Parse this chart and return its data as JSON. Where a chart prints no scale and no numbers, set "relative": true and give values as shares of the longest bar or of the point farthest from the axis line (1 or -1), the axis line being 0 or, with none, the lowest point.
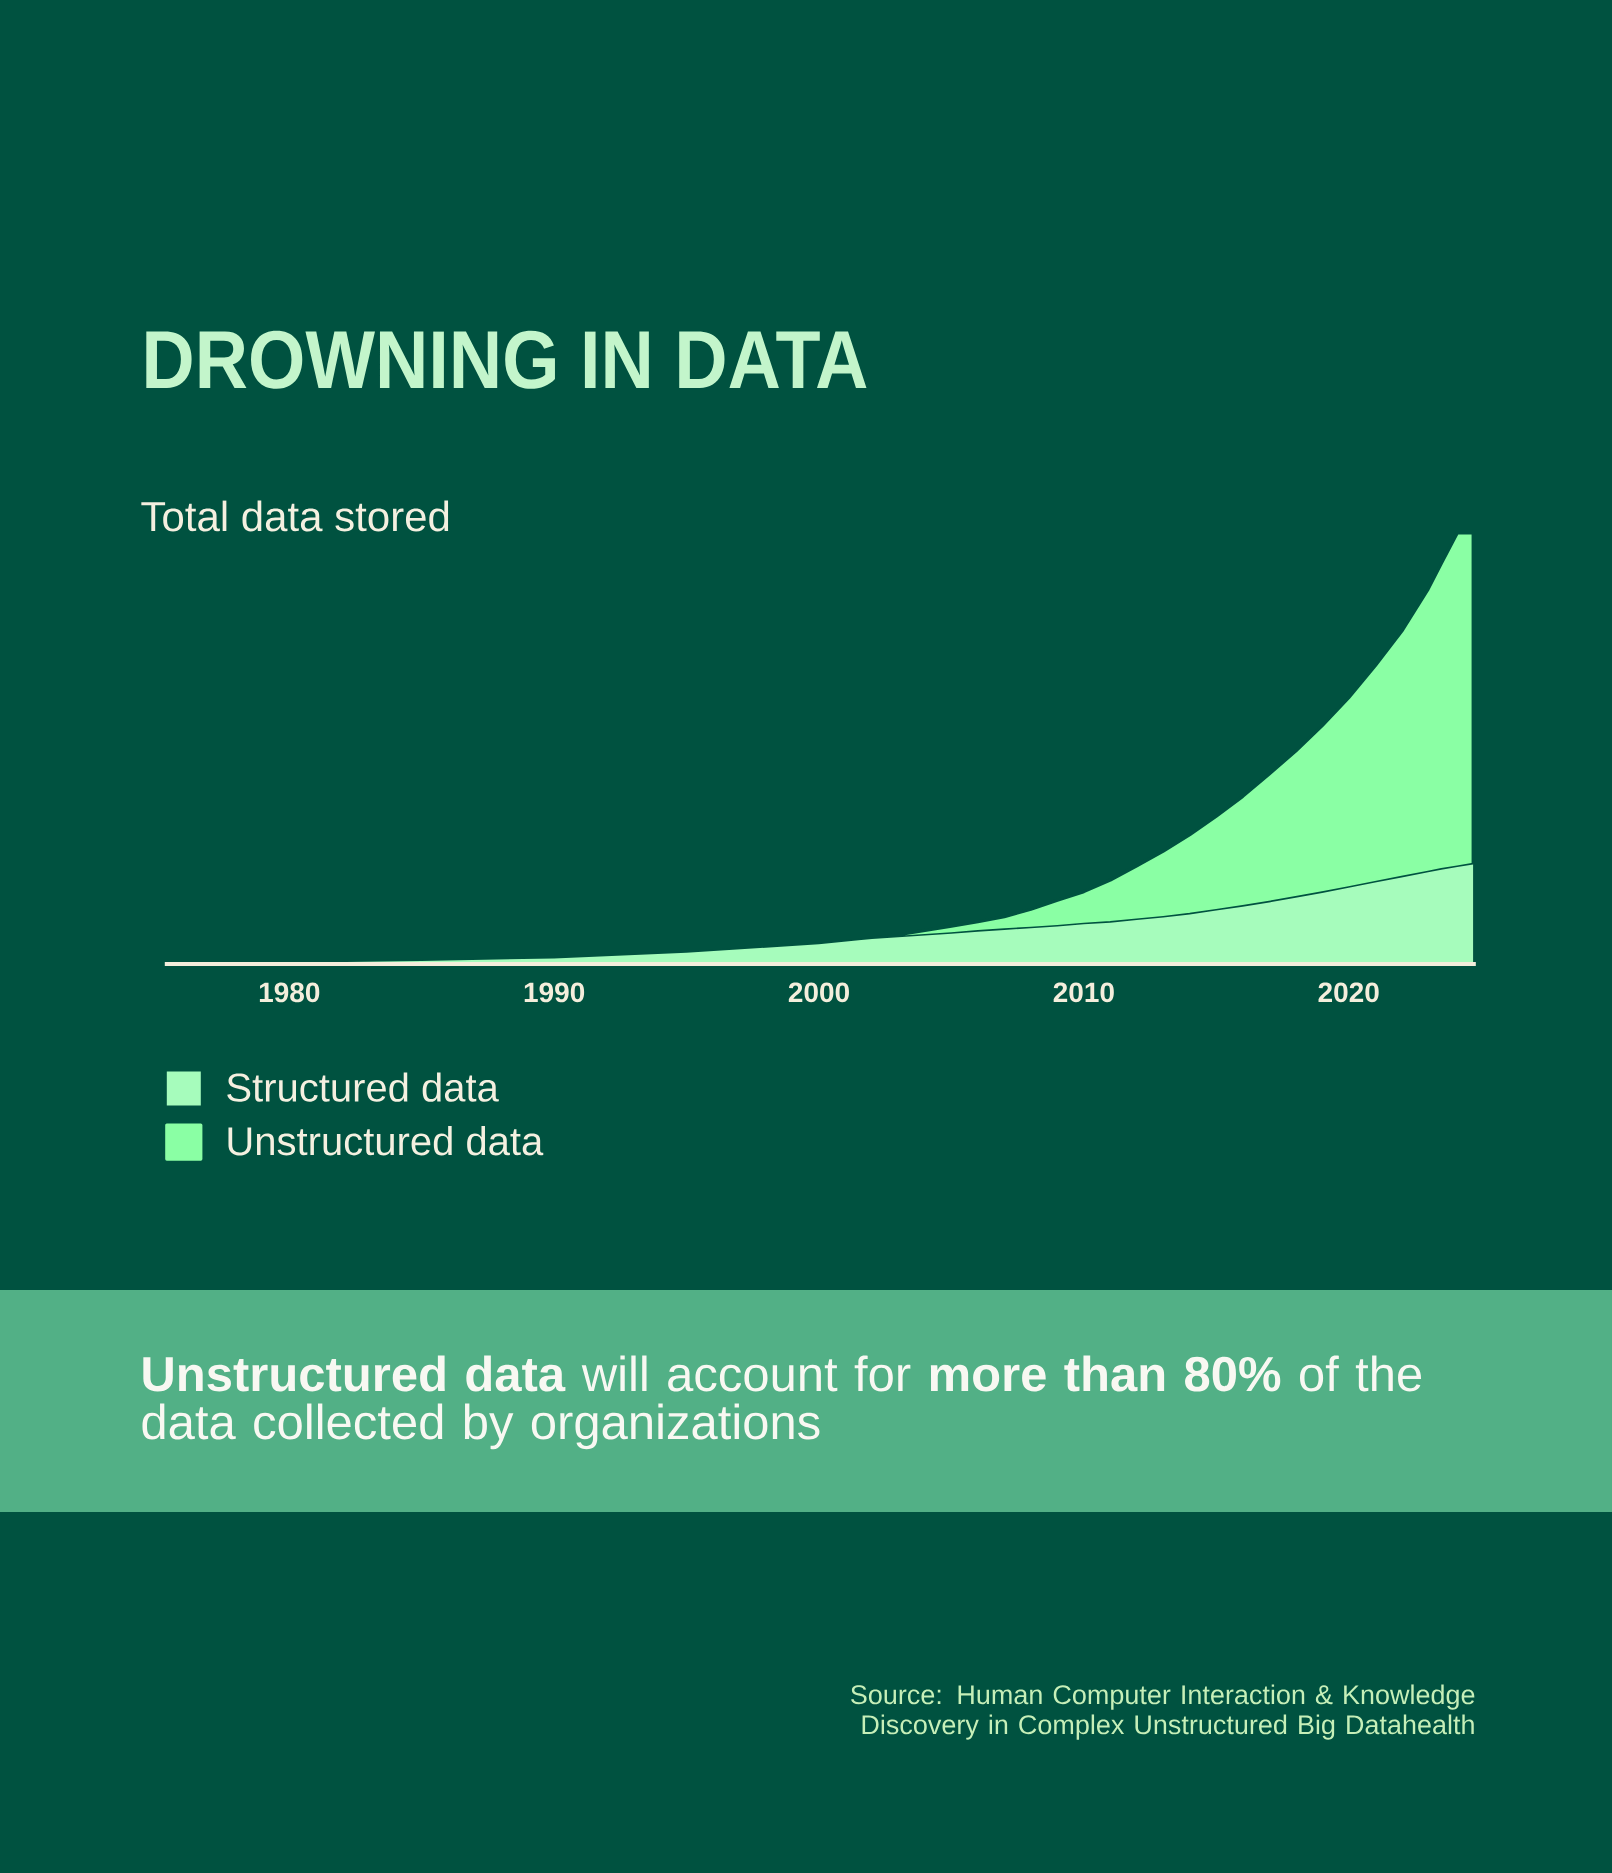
{
  "chart_data": {
    "type": "area",
    "title": "DROWNING IN DATA",
    "ylabel": "Total data stored",
    "stacked": true,
    "relative": true,
    "legend": "bottom left",
    "x": [
      1975.3,
      1980,
      1985,
      1990,
      1995,
      2000,
      2001.5,
      2002,
      2003,
      2004,
      2005,
      2006,
      2007,
      2008,
      2009,
      2010,
      2011,
      2012,
      2013,
      2014,
      2015,
      2016,
      2017,
      2018,
      2019,
      2020,
      2021,
      2022,
      2023,
      2023.5,
      2024.1,
      2024.7
    ],
    "xlim": [
      1975.3,
      2024.8
    ],
    "xticks": [
      1980,
      1990,
      2000,
      2010,
      2020
    ],
    "series": [
      {
        "name": "Structured data",
        "color": "#a6fcbc",
        "values": [
          0.002,
          0.003,
          0.007,
          0.013,
          0.026,
          0.046,
          0.055,
          0.058,
          0.062,
          0.066,
          0.07,
          0.075,
          0.079,
          0.083,
          0.087,
          0.092,
          0.096,
          0.102,
          0.108,
          0.115,
          0.124,
          0.133,
          0.143,
          0.154,
          0.165,
          0.177,
          0.189,
          0.201,
          0.213,
          0.219,
          0.225,
          0.231
        ]
      },
      {
        "name": "Unstructured data",
        "color": "#8affa4",
        "values": [
          0,
          0,
          0,
          0,
          0,
          0,
          0,
          0.002,
          0.006,
          0.012,
          0.018,
          0.023,
          0.031,
          0.044,
          0.061,
          0.076,
          0.099,
          0.126,
          0.154,
          0.185,
          0.219,
          0.256,
          0.298,
          0.34,
          0.388,
          0.441,
          0.503,
          0.571,
          0.657,
          0.711,
          0.775,
          0.769
        ]
      }
    ],
    "annotations": [
      "**Unstructured data** will account for **more than 80%** of the data collected by organizations",
      "Source: Human Computer Interaction & Knowledge Discovery in Complex Unstructured Big Datahealth"
    ]
  }
}
